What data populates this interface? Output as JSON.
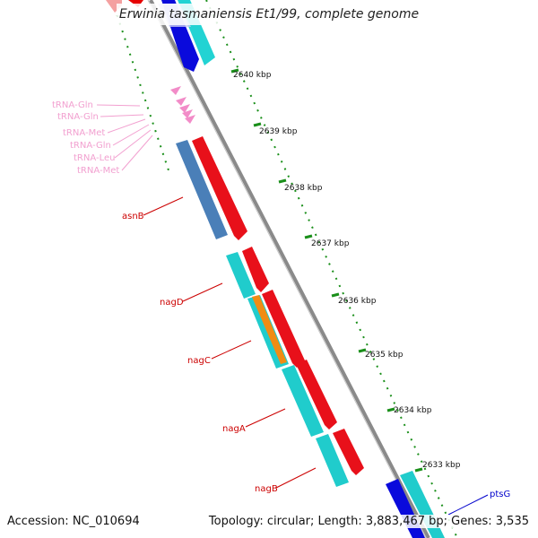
{
  "title": "Erwinia tasmaniensis Et1/99, complete genome",
  "scale": {
    "ticks": [
      "2640 kbp",
      "2639 kbp",
      "2638 kbp",
      "2637 kbp",
      "2636 kbp",
      "2635 kbp",
      "2634 kbp",
      "2633 kbp"
    ]
  },
  "labels": {
    "trna": [
      "tRNA-Gln",
      "tRNA-Gln",
      "tRNA-Met",
      "tRNA-Gln",
      "tRNA-Leu",
      "tRNA-Met"
    ],
    "genes": [
      "asnB",
      "nagD",
      "nagC",
      "nagA",
      "nagB"
    ],
    "ptsG": "ptsG"
  },
  "footer": {
    "accession": "Accession: NC_010694",
    "summary": "Topology: circular; Length: 3,883,467 bp; Genes: 3,535"
  },
  "colors": {
    "gene_red": "#e8101a",
    "gene_cyan": "#20cccc",
    "gene_blue": "#0a0adc",
    "gene_steel_blue": "#4a7fb8",
    "gene_orange": "#f08c14",
    "trna_pink": "#f28cc8",
    "scale_green": "#1a8f1a",
    "label_red": "#cc0000",
    "label_blue": "#0000cc",
    "backbone_gray": "#8a8a8a"
  }
}
